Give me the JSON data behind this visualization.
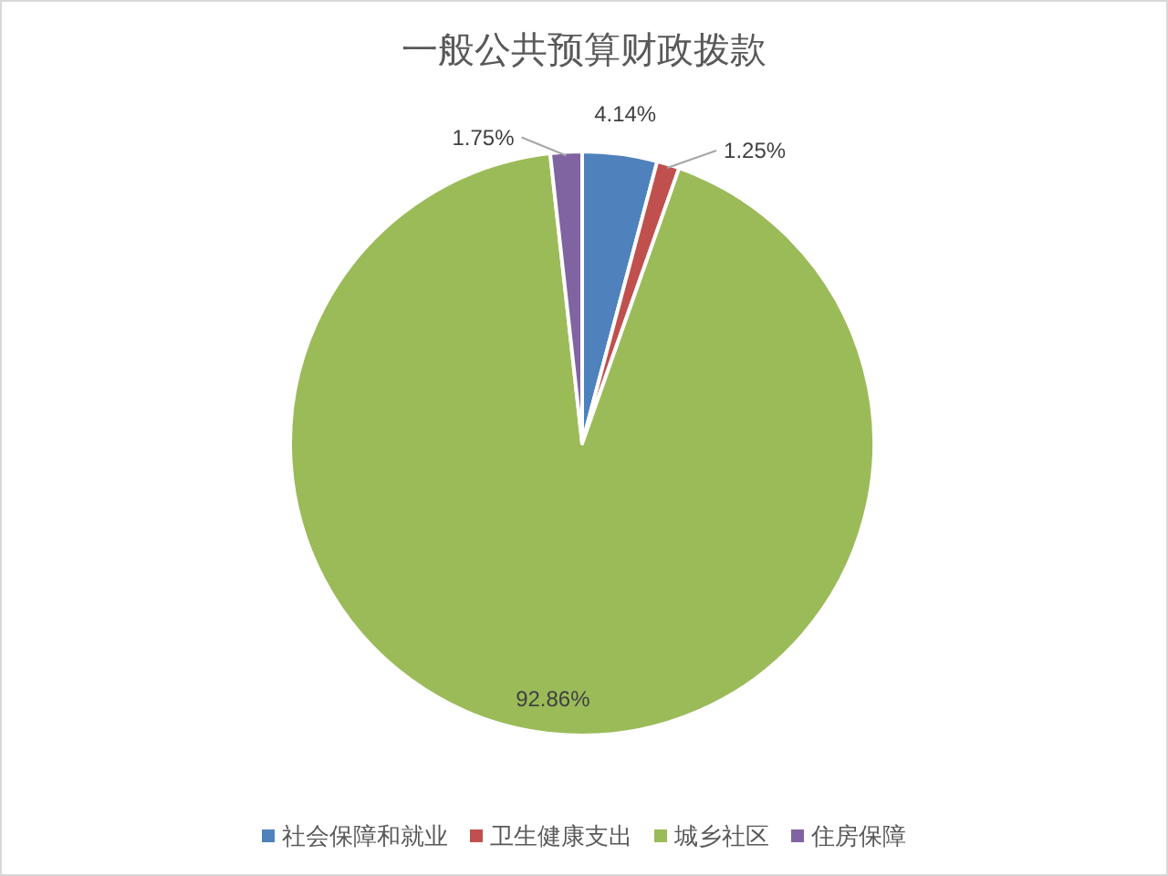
{
  "chart_data": {
    "type": "pie",
    "title": "一般公共预算财政拨款",
    "categories": [
      "社会保障和就业",
      "卫生健康支出",
      "城乡社区",
      "住房保障"
    ],
    "values": [
      4.14,
      1.25,
      92.86,
      1.75
    ],
    "colors": [
      "#4f81bd",
      "#c0504d",
      "#9bbb59",
      "#8064a2"
    ],
    "value_labels": [
      "4.14%",
      "1.25%",
      "92.86%",
      "1.75%"
    ],
    "legend": "bottom"
  }
}
